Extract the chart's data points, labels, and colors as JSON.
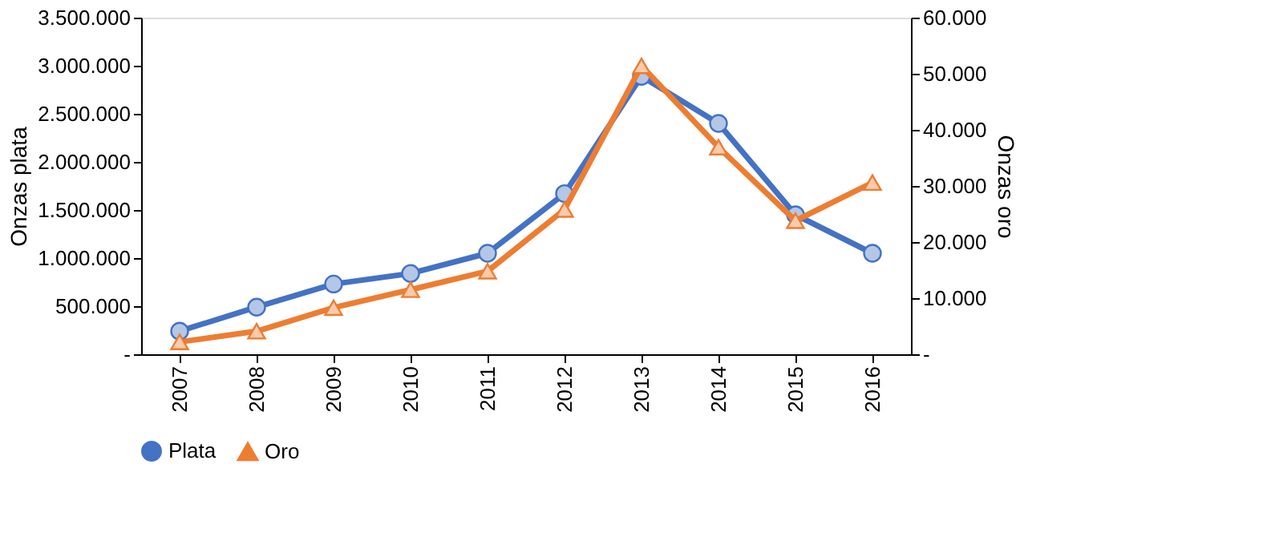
{
  "chart_data": {
    "type": "line",
    "categories": [
      "2007",
      "2008",
      "2009",
      "2010",
      "2011",
      "2012",
      "2013",
      "2014",
      "2015",
      "2016"
    ],
    "ylabel": "Onzas plata",
    "y2label": "Onzas oro",
    "ylim": [
      0,
      3500000
    ],
    "yticks": [
      {
        "value": 0,
        "label": "-"
      },
      {
        "value": 500000,
        "label": "500.000"
      },
      {
        "value": 1000000,
        "label": "1.000.000"
      },
      {
        "value": 1500000,
        "label": "1.500.000"
      },
      {
        "value": 2000000,
        "label": "2.000.000"
      },
      {
        "value": 2500000,
        "label": "2.500.000"
      },
      {
        "value": 3000000,
        "label": "3.000.000"
      },
      {
        "value": 3500000,
        "label": "3.500.000"
      }
    ],
    "y2lim": [
      0,
      60000
    ],
    "y2ticks": [
      {
        "value": 0,
        "label": "-"
      },
      {
        "value": 10000,
        "label": "10.000"
      },
      {
        "value": 20000,
        "label": "20.000"
      },
      {
        "value": 30000,
        "label": "30.000"
      },
      {
        "value": 40000,
        "label": "40.000"
      },
      {
        "value": 50000,
        "label": "50.000"
      },
      {
        "value": 60000,
        "label": "60.000"
      }
    ],
    "series": [
      {
        "name": "Plata",
        "color": "#4472c4",
        "marker": "circle",
        "values": [
          240000,
          490000,
          730000,
          840000,
          1050000,
          1670000,
          2890000,
          2400000,
          1450000,
          1050000
        ]
      },
      {
        "name": "Oro",
        "color": "#ed7d31",
        "marker": "triangle",
        "axis": "y2",
        "values": [
          2200,
          4100,
          8300,
          11500,
          14800,
          25800,
          51400,
          36900,
          23800,
          30600
        ]
      }
    ],
    "grid": false,
    "legend": "bottom",
    "line_style": "solid"
  }
}
